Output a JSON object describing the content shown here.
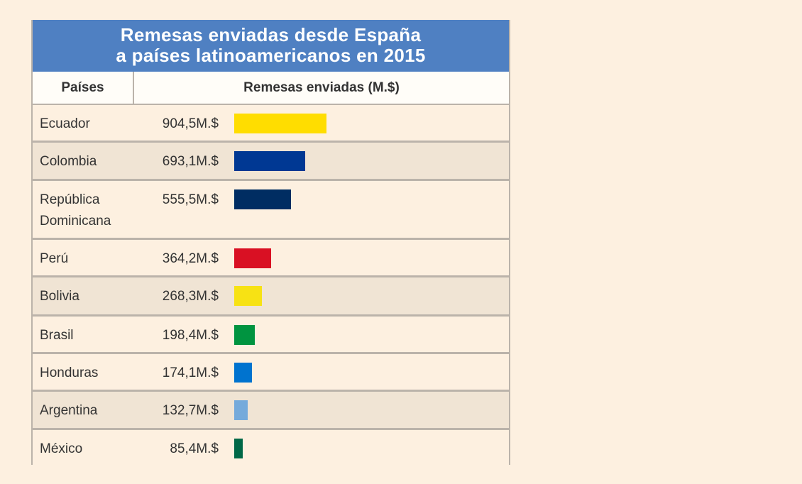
{
  "title_line1": "Remesas enviadas desde España",
  "title_line2": "a países latinoamericanos en 2015",
  "headers": {
    "country": "Países",
    "value": "Remesas enviadas (M.$)"
  },
  "chart_data": {
    "type": "bar",
    "orientation": "horizontal",
    "title": "Remesas enviadas desde España a países latinoamericanos en 2015",
    "unit": "M.$",
    "categories": [
      "Ecuador",
      "Colombia",
      "República Dominicana",
      "Perú",
      "Bolivia",
      "Brasil",
      "Honduras",
      "Argentina",
      "México"
    ],
    "values": [
      904.5,
      693.1,
      555.5,
      364.2,
      268.3,
      198.4,
      174.1,
      132.7,
      85.4
    ],
    "labels": [
      "904,5M.$",
      "693,1M.$",
      "555,5M.$",
      "364,2M.$",
      "268,3M.$",
      "198,4M.$",
      "174,1M.$",
      "132,7M.$",
      "85,4M.$"
    ],
    "colors": [
      "#ffdd00",
      "#003893",
      "#002d62",
      "#d91023",
      "#f7e214",
      "#009440",
      "#0073cf",
      "#75aadb",
      "#006847"
    ]
  }
}
